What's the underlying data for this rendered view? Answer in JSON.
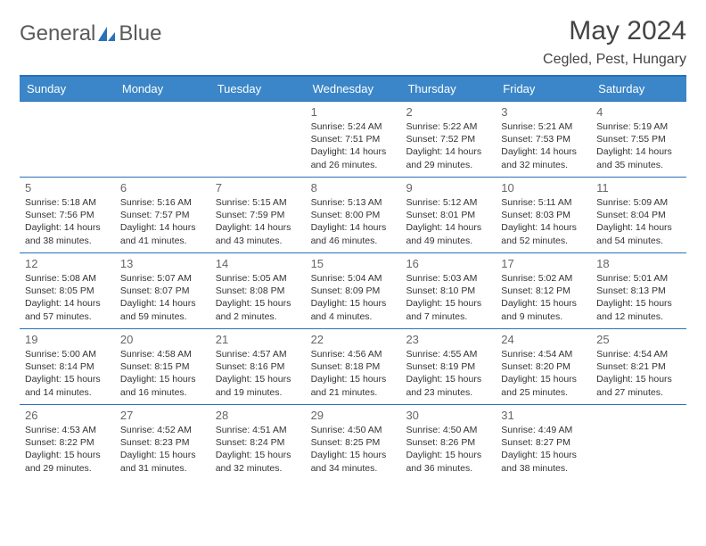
{
  "brand": {
    "name_a": "General",
    "name_b": "Blue"
  },
  "title": "May 2024",
  "location": "Cegled, Pest, Hungary",
  "colors": {
    "header_bg": "#3b86c8",
    "rule": "#2a71b8",
    "text": "#333333",
    "muted": "#666666",
    "brand_gray": "#5a5a5a",
    "brand_blue": "#2a71b8",
    "bg": "#ffffff"
  },
  "typography": {
    "title_fontsize": 30,
    "location_fontsize": 16,
    "dayhdr_fontsize": 13,
    "daynum_fontsize": 13,
    "info_fontsize": 10.5
  },
  "day_headers": [
    "Sunday",
    "Monday",
    "Tuesday",
    "Wednesday",
    "Thursday",
    "Friday",
    "Saturday"
  ],
  "weeks": [
    [
      {
        "n": "",
        "sr": "",
        "ss": "",
        "dl": ""
      },
      {
        "n": "",
        "sr": "",
        "ss": "",
        "dl": ""
      },
      {
        "n": "",
        "sr": "",
        "ss": "",
        "dl": ""
      },
      {
        "n": "1",
        "sr": "Sunrise: 5:24 AM",
        "ss": "Sunset: 7:51 PM",
        "dl": "Daylight: 14 hours and 26 minutes."
      },
      {
        "n": "2",
        "sr": "Sunrise: 5:22 AM",
        "ss": "Sunset: 7:52 PM",
        "dl": "Daylight: 14 hours and 29 minutes."
      },
      {
        "n": "3",
        "sr": "Sunrise: 5:21 AM",
        "ss": "Sunset: 7:53 PM",
        "dl": "Daylight: 14 hours and 32 minutes."
      },
      {
        "n": "4",
        "sr": "Sunrise: 5:19 AM",
        "ss": "Sunset: 7:55 PM",
        "dl": "Daylight: 14 hours and 35 minutes."
      }
    ],
    [
      {
        "n": "5",
        "sr": "Sunrise: 5:18 AM",
        "ss": "Sunset: 7:56 PM",
        "dl": "Daylight: 14 hours and 38 minutes."
      },
      {
        "n": "6",
        "sr": "Sunrise: 5:16 AM",
        "ss": "Sunset: 7:57 PM",
        "dl": "Daylight: 14 hours and 41 minutes."
      },
      {
        "n": "7",
        "sr": "Sunrise: 5:15 AM",
        "ss": "Sunset: 7:59 PM",
        "dl": "Daylight: 14 hours and 43 minutes."
      },
      {
        "n": "8",
        "sr": "Sunrise: 5:13 AM",
        "ss": "Sunset: 8:00 PM",
        "dl": "Daylight: 14 hours and 46 minutes."
      },
      {
        "n": "9",
        "sr": "Sunrise: 5:12 AM",
        "ss": "Sunset: 8:01 PM",
        "dl": "Daylight: 14 hours and 49 minutes."
      },
      {
        "n": "10",
        "sr": "Sunrise: 5:11 AM",
        "ss": "Sunset: 8:03 PM",
        "dl": "Daylight: 14 hours and 52 minutes."
      },
      {
        "n": "11",
        "sr": "Sunrise: 5:09 AM",
        "ss": "Sunset: 8:04 PM",
        "dl": "Daylight: 14 hours and 54 minutes."
      }
    ],
    [
      {
        "n": "12",
        "sr": "Sunrise: 5:08 AM",
        "ss": "Sunset: 8:05 PM",
        "dl": "Daylight: 14 hours and 57 minutes."
      },
      {
        "n": "13",
        "sr": "Sunrise: 5:07 AM",
        "ss": "Sunset: 8:07 PM",
        "dl": "Daylight: 14 hours and 59 minutes."
      },
      {
        "n": "14",
        "sr": "Sunrise: 5:05 AM",
        "ss": "Sunset: 8:08 PM",
        "dl": "Daylight: 15 hours and 2 minutes."
      },
      {
        "n": "15",
        "sr": "Sunrise: 5:04 AM",
        "ss": "Sunset: 8:09 PM",
        "dl": "Daylight: 15 hours and 4 minutes."
      },
      {
        "n": "16",
        "sr": "Sunrise: 5:03 AM",
        "ss": "Sunset: 8:10 PM",
        "dl": "Daylight: 15 hours and 7 minutes."
      },
      {
        "n": "17",
        "sr": "Sunrise: 5:02 AM",
        "ss": "Sunset: 8:12 PM",
        "dl": "Daylight: 15 hours and 9 minutes."
      },
      {
        "n": "18",
        "sr": "Sunrise: 5:01 AM",
        "ss": "Sunset: 8:13 PM",
        "dl": "Daylight: 15 hours and 12 minutes."
      }
    ],
    [
      {
        "n": "19",
        "sr": "Sunrise: 5:00 AM",
        "ss": "Sunset: 8:14 PM",
        "dl": "Daylight: 15 hours and 14 minutes."
      },
      {
        "n": "20",
        "sr": "Sunrise: 4:58 AM",
        "ss": "Sunset: 8:15 PM",
        "dl": "Daylight: 15 hours and 16 minutes."
      },
      {
        "n": "21",
        "sr": "Sunrise: 4:57 AM",
        "ss": "Sunset: 8:16 PM",
        "dl": "Daylight: 15 hours and 19 minutes."
      },
      {
        "n": "22",
        "sr": "Sunrise: 4:56 AM",
        "ss": "Sunset: 8:18 PM",
        "dl": "Daylight: 15 hours and 21 minutes."
      },
      {
        "n": "23",
        "sr": "Sunrise: 4:55 AM",
        "ss": "Sunset: 8:19 PM",
        "dl": "Daylight: 15 hours and 23 minutes."
      },
      {
        "n": "24",
        "sr": "Sunrise: 4:54 AM",
        "ss": "Sunset: 8:20 PM",
        "dl": "Daylight: 15 hours and 25 minutes."
      },
      {
        "n": "25",
        "sr": "Sunrise: 4:54 AM",
        "ss": "Sunset: 8:21 PM",
        "dl": "Daylight: 15 hours and 27 minutes."
      }
    ],
    [
      {
        "n": "26",
        "sr": "Sunrise: 4:53 AM",
        "ss": "Sunset: 8:22 PM",
        "dl": "Daylight: 15 hours and 29 minutes."
      },
      {
        "n": "27",
        "sr": "Sunrise: 4:52 AM",
        "ss": "Sunset: 8:23 PM",
        "dl": "Daylight: 15 hours and 31 minutes."
      },
      {
        "n": "28",
        "sr": "Sunrise: 4:51 AM",
        "ss": "Sunset: 8:24 PM",
        "dl": "Daylight: 15 hours and 32 minutes."
      },
      {
        "n": "29",
        "sr": "Sunrise: 4:50 AM",
        "ss": "Sunset: 8:25 PM",
        "dl": "Daylight: 15 hours and 34 minutes."
      },
      {
        "n": "30",
        "sr": "Sunrise: 4:50 AM",
        "ss": "Sunset: 8:26 PM",
        "dl": "Daylight: 15 hours and 36 minutes."
      },
      {
        "n": "31",
        "sr": "Sunrise: 4:49 AM",
        "ss": "Sunset: 8:27 PM",
        "dl": "Daylight: 15 hours and 38 minutes."
      },
      {
        "n": "",
        "sr": "",
        "ss": "",
        "dl": ""
      }
    ]
  ]
}
